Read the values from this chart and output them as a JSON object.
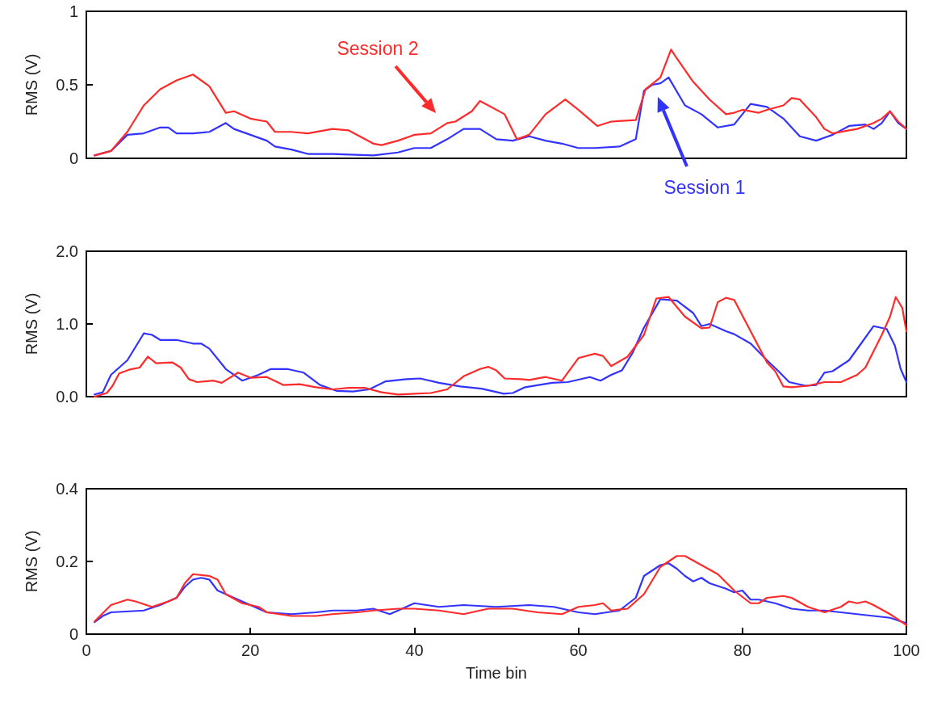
{
  "chart_data": [
    {
      "type": "line",
      "ylabel": "RMS (V)",
      "xlim": [
        0,
        100
      ],
      "ylim": [
        0,
        1
      ],
      "yticks": [
        0,
        0.5,
        1
      ],
      "tick_labels": "y",
      "grid": false,
      "marker": "none",
      "line_style": "solid",
      "annotations": [
        "Session 1",
        "Session 2"
      ],
      "series": [
        {
          "color": "#3333ff",
          "x": [
            1,
            3,
            5,
            7,
            9,
            10,
            11,
            13,
            15,
            17,
            18,
            20,
            22,
            23,
            25,
            27,
            30,
            35,
            38,
            40,
            42,
            44,
            46,
            48,
            50,
            52,
            54,
            56,
            58,
            60,
            62,
            65,
            67,
            68,
            69,
            70,
            71,
            73,
            75,
            77,
            79,
            81,
            83,
            85,
            87,
            89,
            91,
            93,
            95,
            96,
            97,
            98,
            99,
            100
          ],
          "values": [
            0.02,
            0.05,
            0.16,
            0.17,
            0.21,
            0.21,
            0.17,
            0.17,
            0.18,
            0.24,
            0.2,
            0.16,
            0.12,
            0.08,
            0.06,
            0.03,
            0.03,
            0.02,
            0.04,
            0.07,
            0.07,
            0.13,
            0.2,
            0.2,
            0.13,
            0.12,
            0.15,
            0.12,
            0.1,
            0.07,
            0.07,
            0.08,
            0.13,
            0.46,
            0.5,
            0.51,
            0.55,
            0.36,
            0.3,
            0.21,
            0.23,
            0.37,
            0.35,
            0.27,
            0.15,
            0.12,
            0.16,
            0.22,
            0.23,
            0.2,
            0.24,
            0.32,
            0.24,
            0.2
          ]
        },
        {
          "color": "#ff2a2a",
          "x": [
            1,
            3,
            5,
            7,
            9,
            11,
            13,
            15,
            17,
            18,
            20,
            22,
            23,
            25,
            27,
            30,
            32,
            35,
            36,
            38,
            40,
            42,
            44,
            45,
            47,
            48,
            51,
            52.5,
            54,
            56,
            58.4,
            60,
            62.3,
            64,
            67,
            68.2,
            70,
            71.3,
            72,
            74,
            76,
            78,
            79,
            80,
            82,
            83,
            85,
            86,
            87,
            89,
            90,
            91,
            93,
            94,
            96,
            97,
            98,
            99,
            100
          ],
          "values": [
            0.02,
            0.05,
            0.18,
            0.36,
            0.47,
            0.53,
            0.57,
            0.49,
            0.31,
            0.32,
            0.27,
            0.25,
            0.18,
            0.18,
            0.17,
            0.2,
            0.19,
            0.1,
            0.09,
            0.12,
            0.16,
            0.17,
            0.24,
            0.25,
            0.32,
            0.39,
            0.3,
            0.13,
            0.16,
            0.3,
            0.4,
            0.33,
            0.22,
            0.25,
            0.26,
            0.47,
            0.55,
            0.74,
            0.68,
            0.52,
            0.4,
            0.3,
            0.31,
            0.33,
            0.31,
            0.33,
            0.36,
            0.41,
            0.4,
            0.28,
            0.2,
            0.17,
            0.19,
            0.2,
            0.24,
            0.27,
            0.32,
            0.25,
            0.2
          ]
        }
      ]
    },
    {
      "type": "line",
      "ylabel": "RMS (V)",
      "xlim": [
        0,
        100
      ],
      "ylim": [
        0,
        2
      ],
      "yticks": [
        {
          "value": 0,
          "label": "0.0"
        },
        {
          "value": 1,
          "label": "1.0"
        },
        {
          "value": 2,
          "label": "2.0"
        }
      ],
      "tick_labels": "y",
      "grid": false,
      "marker": "none",
      "line_style": "solid",
      "series": [
        {
          "color": "#3333ff",
          "x": [
            1,
            2,
            3,
            5,
            7,
            8,
            9,
            11,
            13,
            14,
            15,
            17,
            19,
            21,
            22.5,
            24.5,
            26.5,
            28.5,
            30.5,
            32.5,
            34.5,
            36.5,
            39,
            40.7,
            43,
            45.6,
            48.2,
            50.9,
            52,
            53.5,
            56.8,
            58.7,
            61.4,
            62.7,
            64,
            65.3,
            66.6,
            68,
            70,
            72,
            74,
            75,
            76,
            78,
            79,
            81,
            83,
            84.4,
            85.7,
            87.7,
            89,
            90,
            91,
            93,
            94.6,
            96,
            97.6,
            98.6,
            99.3,
            100
          ],
          "values": [
            0.03,
            0.06,
            0.3,
            0.5,
            0.87,
            0.85,
            0.78,
            0.78,
            0.73,
            0.73,
            0.66,
            0.38,
            0.22,
            0.3,
            0.38,
            0.38,
            0.33,
            0.16,
            0.08,
            0.07,
            0.1,
            0.21,
            0.24,
            0.25,
            0.19,
            0.14,
            0.11,
            0.04,
            0.05,
            0.13,
            0.19,
            0.2,
            0.27,
            0.22,
            0.3,
            0.36,
            0.6,
            0.95,
            1.34,
            1.32,
            1.15,
            0.97,
            1.0,
            0.9,
            0.86,
            0.73,
            0.5,
            0.35,
            0.2,
            0.15,
            0.16,
            0.33,
            0.35,
            0.5,
            0.75,
            0.97,
            0.93,
            0.7,
            0.38,
            0.2
          ]
        },
        {
          "color": "#ff2a2a",
          "x": [
            1,
            2.5,
            3.2,
            4,
            5.2,
            6.5,
            7.5,
            8.5,
            10.5,
            11.5,
            12.5,
            13.5,
            15.5,
            16.5,
            18.5,
            20,
            22,
            24,
            26,
            28,
            30,
            32,
            34,
            36,
            38,
            42,
            44,
            46,
            48,
            49,
            50,
            51,
            53,
            54,
            56,
            58,
            60,
            62,
            63,
            64,
            66,
            68,
            69.5,
            71,
            73,
            75,
            76,
            77,
            78,
            79,
            81,
            83,
            84,
            85,
            86,
            88,
            90,
            92,
            94,
            95,
            97,
            98,
            98.7,
            99.5,
            100
          ],
          "values": [
            0.0,
            0.05,
            0.15,
            0.32,
            0.37,
            0.4,
            0.55,
            0.46,
            0.47,
            0.4,
            0.24,
            0.2,
            0.22,
            0.19,
            0.33,
            0.26,
            0.27,
            0.16,
            0.17,
            0.13,
            0.1,
            0.12,
            0.12,
            0.06,
            0.03,
            0.05,
            0.1,
            0.28,
            0.38,
            0.41,
            0.36,
            0.25,
            0.24,
            0.23,
            0.27,
            0.22,
            0.53,
            0.59,
            0.56,
            0.42,
            0.55,
            0.85,
            1.35,
            1.37,
            1.1,
            0.94,
            0.95,
            1.3,
            1.36,
            1.33,
            0.9,
            0.47,
            0.35,
            0.14,
            0.13,
            0.15,
            0.2,
            0.2,
            0.3,
            0.4,
            0.85,
            1.1,
            1.37,
            1.22,
            0.9
          ]
        }
      ]
    },
    {
      "type": "line",
      "xlabel": "Time bin",
      "ylabel": "RMS (V)",
      "xlim": [
        0,
        100
      ],
      "xticks": [
        0,
        20,
        40,
        60,
        80,
        100
      ],
      "ylim": [
        0,
        0.4
      ],
      "yticks": [
        0,
        0.2,
        0.4
      ],
      "grid": false,
      "marker": "none",
      "line_style": "solid",
      "series": [
        {
          "color": "#3333ff",
          "x": [
            1,
            2,
            3,
            7,
            9,
            11,
            12,
            13,
            14,
            15,
            16,
            18,
            20,
            22,
            25,
            28,
            30,
            33,
            35,
            37,
            40,
            43,
            46,
            50,
            54,
            57,
            60,
            62,
            65,
            67,
            68,
            70,
            71,
            72,
            73,
            74,
            75,
            76,
            78,
            79,
            80,
            81,
            82,
            84,
            86,
            88,
            90,
            92,
            94,
            96,
            98,
            100
          ],
          "values": [
            0.033,
            0.05,
            0.06,
            0.065,
            0.08,
            0.1,
            0.13,
            0.15,
            0.155,
            0.15,
            0.12,
            0.1,
            0.08,
            0.06,
            0.055,
            0.06,
            0.065,
            0.065,
            0.07,
            0.055,
            0.085,
            0.075,
            0.08,
            0.075,
            0.08,
            0.075,
            0.06,
            0.055,
            0.065,
            0.1,
            0.16,
            0.19,
            0.195,
            0.18,
            0.16,
            0.145,
            0.155,
            0.14,
            0.125,
            0.115,
            0.12,
            0.095,
            0.095,
            0.085,
            0.07,
            0.065,
            0.065,
            0.06,
            0.055,
            0.05,
            0.045,
            0.03
          ]
        },
        {
          "color": "#ff2a2a",
          "x": [
            1,
            3,
            5,
            6,
            8,
            10,
            11,
            12,
            13,
            15,
            16,
            17,
            19,
            21,
            22,
            25,
            28,
            30,
            33,
            35,
            38,
            40,
            43,
            46,
            49,
            52,
            55,
            58,
            60,
            62,
            63,
            64,
            66,
            68,
            70,
            71,
            72,
            73,
            75,
            77,
            79,
            81,
            82,
            83,
            85,
            86,
            88,
            90,
            92,
            93,
            94,
            95,
            96,
            98,
            100
          ],
          "values": [
            0.035,
            0.08,
            0.095,
            0.09,
            0.075,
            0.09,
            0.1,
            0.14,
            0.165,
            0.16,
            0.15,
            0.11,
            0.085,
            0.075,
            0.06,
            0.05,
            0.05,
            0.055,
            0.06,
            0.065,
            0.07,
            0.07,
            0.065,
            0.055,
            0.07,
            0.07,
            0.06,
            0.055,
            0.075,
            0.08,
            0.085,
            0.065,
            0.07,
            0.11,
            0.185,
            0.2,
            0.215,
            0.215,
            0.19,
            0.165,
            0.12,
            0.085,
            0.085,
            0.1,
            0.105,
            0.1,
            0.075,
            0.06,
            0.075,
            0.09,
            0.085,
            0.09,
            0.08,
            0.055,
            0.025
          ]
        }
      ]
    }
  ]
}
